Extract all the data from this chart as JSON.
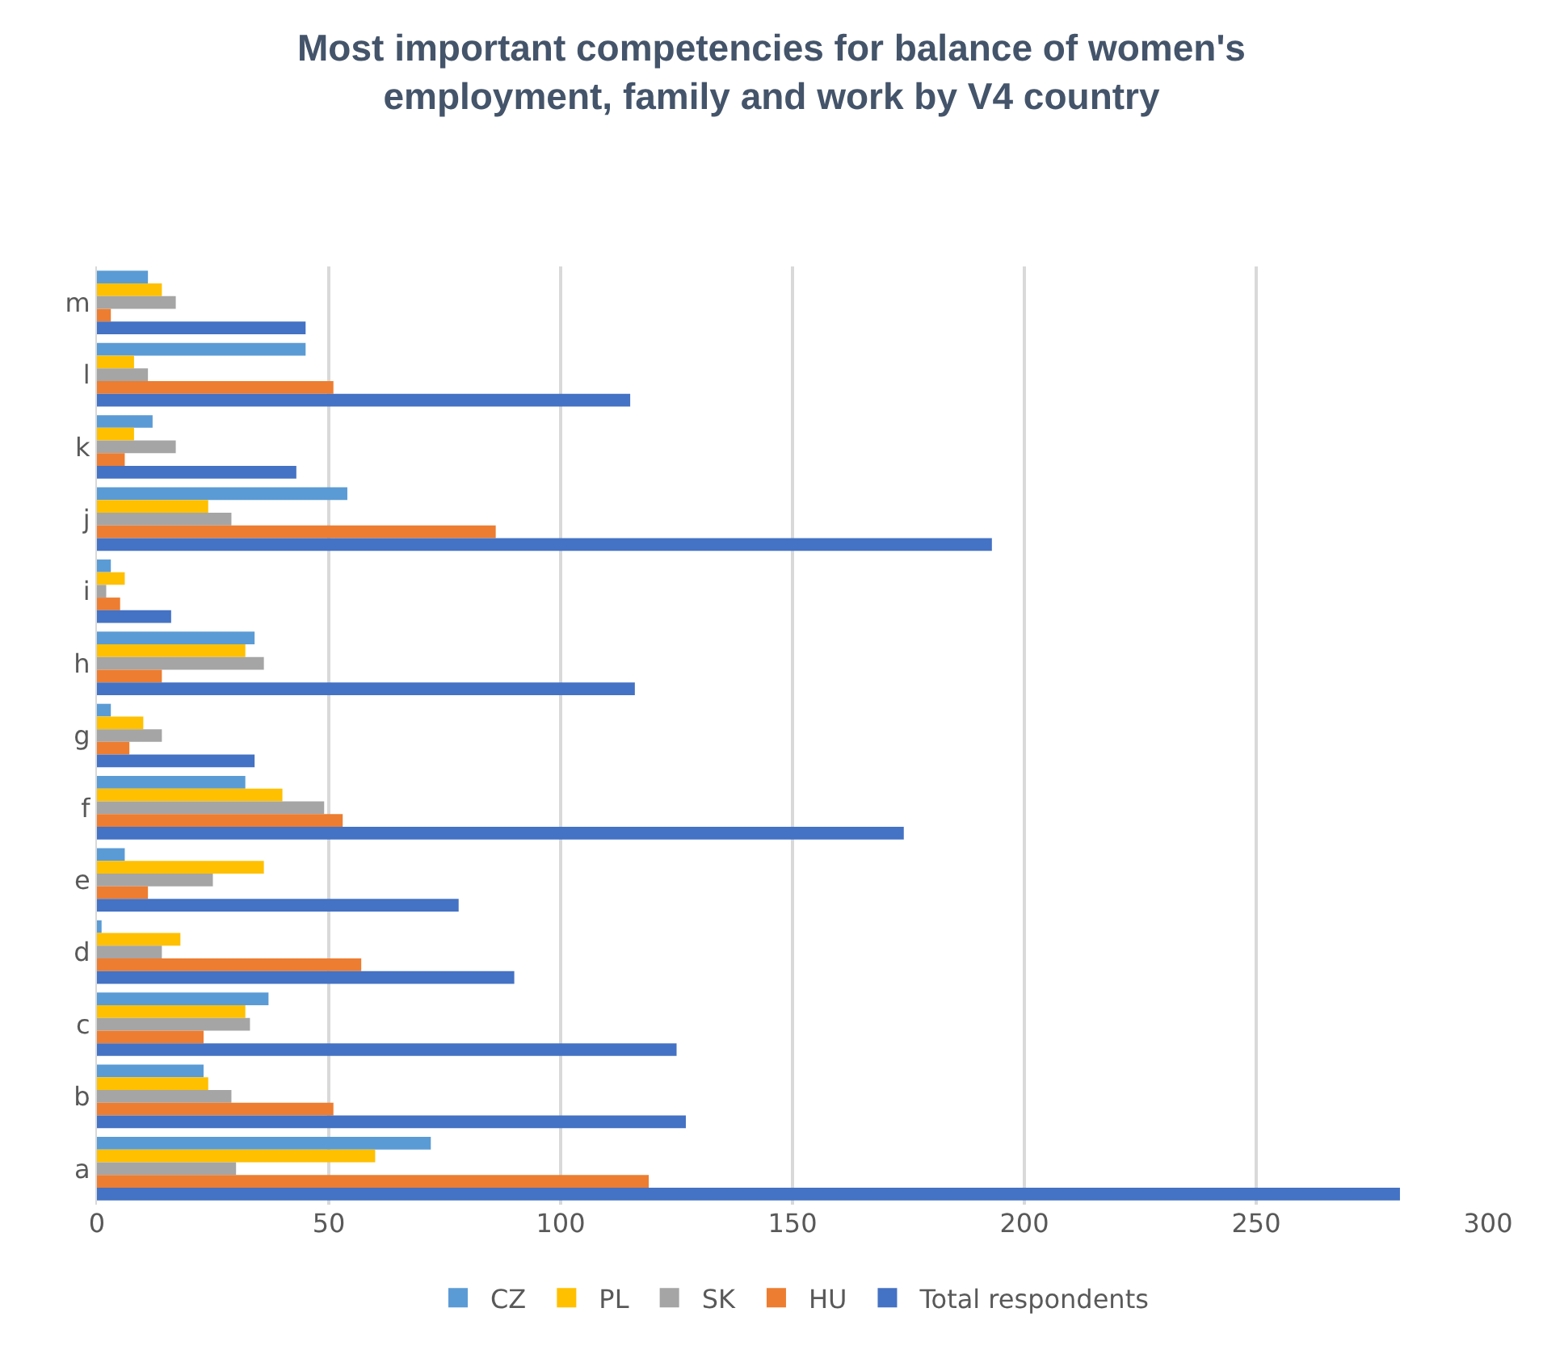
{
  "chart_data": {
    "type": "bar",
    "orientation": "horizontal",
    "title": "Most important competencies for balance of women's employment, family and work by V4 country",
    "categories": [
      "m",
      "l",
      "k",
      "j",
      "i",
      "h",
      "g",
      "f",
      "e",
      "d",
      "c",
      "b",
      "a"
    ],
    "series": [
      {
        "name": "CZ",
        "color": "#5b9bd5",
        "values": [
          11,
          45,
          12,
          54,
          3,
          34,
          3,
          32,
          6,
          1,
          37,
          23,
          72
        ]
      },
      {
        "name": "PL",
        "color": "#ffc000",
        "values": [
          14,
          8,
          8,
          24,
          6,
          32,
          10,
          40,
          36,
          18,
          32,
          24,
          60
        ]
      },
      {
        "name": "SK",
        "color": "#a5a5a5",
        "values": [
          17,
          11,
          17,
          29,
          2,
          36,
          14,
          49,
          25,
          14,
          33,
          29,
          30
        ]
      },
      {
        "name": "HU",
        "color": "#ed7d31",
        "values": [
          3,
          51,
          6,
          86,
          5,
          14,
          7,
          53,
          11,
          57,
          23,
          51,
          119
        ]
      },
      {
        "name": "Total respondents",
        "color": "#4472c4",
        "values": [
          45,
          115,
          43,
          193,
          16,
          116,
          34,
          174,
          78,
          90,
          125,
          127,
          281
        ]
      }
    ],
    "xlim": [
      0,
      300
    ],
    "xticks": [
      0,
      50,
      100,
      150,
      200,
      250,
      300
    ],
    "grid": "x",
    "legend": "bottom"
  }
}
